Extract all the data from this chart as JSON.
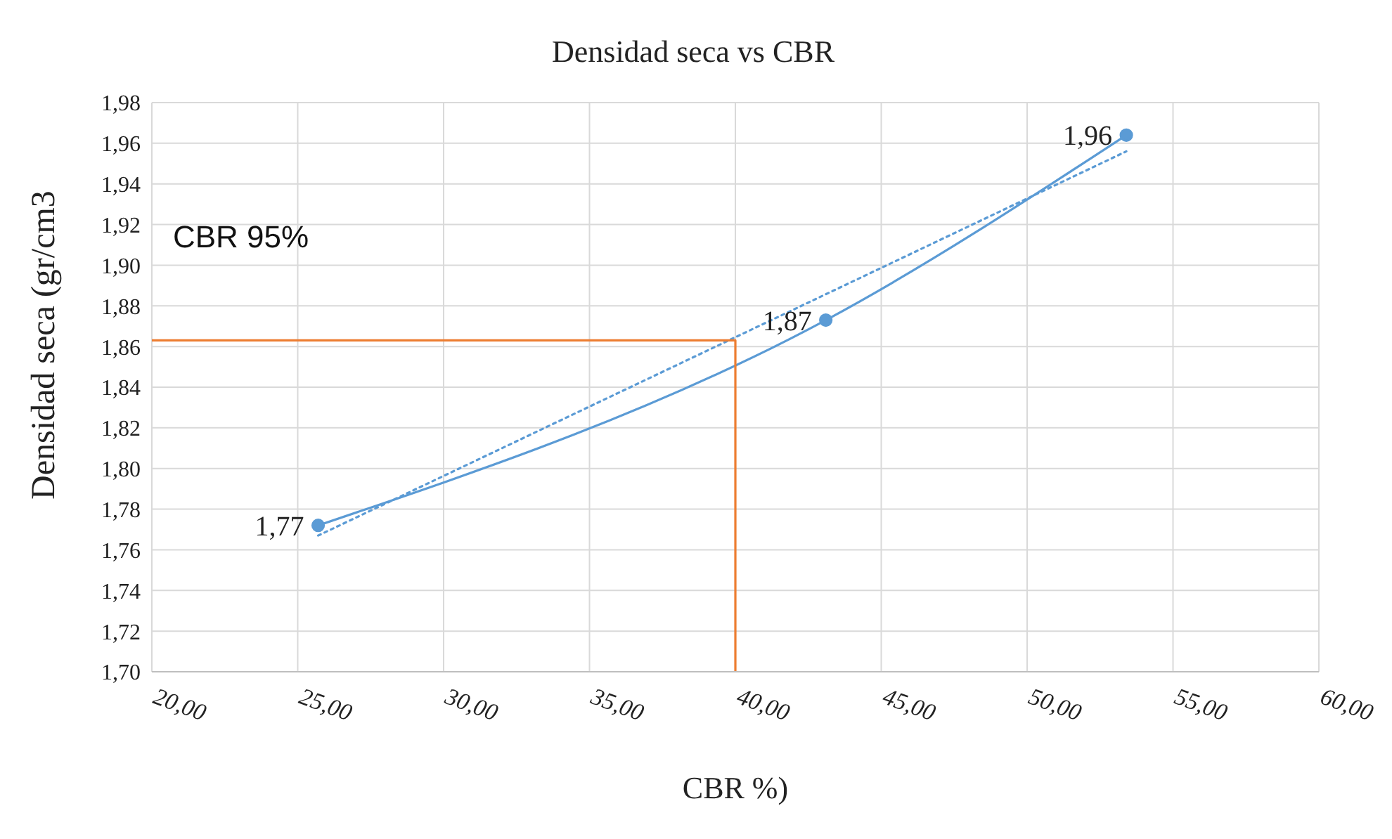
{
  "chart_data": {
    "type": "line",
    "title": "Densidad seca vs CBR",
    "xlabel": "CBR %)",
    "ylabel": "Densidad seca  (gr/cm3",
    "annotations": [
      "CBR 95%"
    ],
    "xlim": [
      20,
      60
    ],
    "xticks": [
      {
        "value": 20,
        "label": "20,00"
      },
      {
        "value": 25,
        "label": "25,00"
      },
      {
        "value": 30,
        "label": "30,00"
      },
      {
        "value": 35,
        "label": "35,00"
      },
      {
        "value": 40,
        "label": "40,00"
      },
      {
        "value": 45,
        "label": "45,00"
      },
      {
        "value": 50,
        "label": "50,00"
      },
      {
        "value": 55,
        "label": "55,00"
      },
      {
        "value": 60,
        "label": "60,00"
      }
    ],
    "ylim": [
      1.7,
      1.98
    ],
    "yticks": [
      {
        "value": 1.7,
        "label": "1,70"
      },
      {
        "value": 1.72,
        "label": "1,72"
      },
      {
        "value": 1.74,
        "label": "1,74"
      },
      {
        "value": 1.76,
        "label": "1,76"
      },
      {
        "value": 1.78,
        "label": "1,78"
      },
      {
        "value": 1.8,
        "label": "1,80"
      },
      {
        "value": 1.82,
        "label": "1,82"
      },
      {
        "value": 1.84,
        "label": "1,84"
      },
      {
        "value": 1.86,
        "label": "1,86"
      },
      {
        "value": 1.88,
        "label": "1,88"
      },
      {
        "value": 1.9,
        "label": "1,90"
      },
      {
        "value": 1.92,
        "label": "1,92"
      },
      {
        "value": 1.94,
        "label": "1,94"
      },
      {
        "value": 1.96,
        "label": "1,96"
      },
      {
        "value": 1.98,
        "label": "1,98"
      }
    ],
    "grid": true,
    "legend": false,
    "series": [
      {
        "color": "#5b9bd5",
        "x": [
          25.7,
          43.1,
          53.4
        ],
        "values": [
          1.772,
          1.873,
          1.964
        ],
        "value_labels": [
          "1,77",
          "1,87",
          "1,96"
        ],
        "marker": "circle",
        "line_style": "solid"
      },
      {
        "color": "#5b9bd5",
        "x": [
          25.7,
          53.4
        ],
        "values": [
          1.767,
          1.956
        ],
        "marker": "none",
        "line_style": "dotted"
      },
      {
        "color": "#ed7d31",
        "x": [
          20,
          40,
          40
        ],
        "values": [
          1.863,
          1.863,
          1.7
        ],
        "marker": "none",
        "line_style": "solid"
      }
    ]
  }
}
